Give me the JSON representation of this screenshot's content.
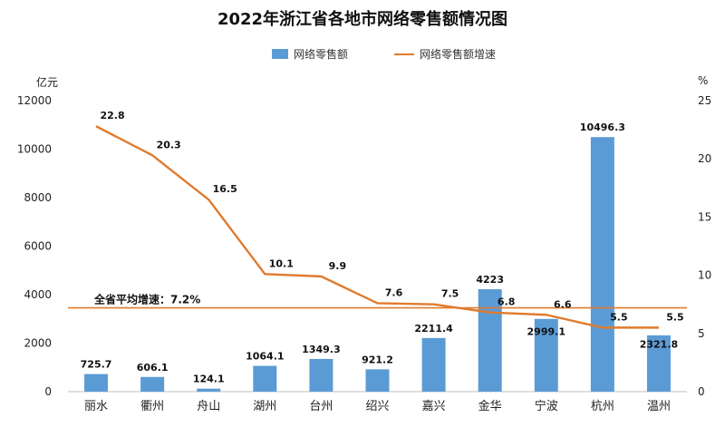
{
  "chart_data": {
    "type": "bar+line",
    "title": "2022年浙江省各地市网络零售额情况图",
    "categories": [
      "丽水",
      "衢州",
      "舟山",
      "湖州",
      "台州",
      "绍兴",
      "嘉兴",
      "金华",
      "宁波",
      "杭州",
      "温州"
    ],
    "series": [
      {
        "name": "网络零售额",
        "type": "bar",
        "axis": "left",
        "color": "#5b9bd5",
        "values": [
          725.7,
          606.1,
          124.1,
          1064.1,
          1349.3,
          921.2,
          2211.4,
          4223,
          2999.1,
          10496.3,
          2321.8
        ],
        "labels": [
          "725.7",
          "606.1",
          "124.1",
          "1064.1",
          "1349.3",
          "921.2",
          "2211.4",
          "4223",
          "2999.1",
          "10496.3",
          "2321.8"
        ]
      },
      {
        "name": "网络零售额增速",
        "type": "line",
        "axis": "right",
        "color": "#e07b2e",
        "values": [
          22.8,
          20.3,
          16.5,
          10.1,
          9.9,
          7.6,
          7.5,
          6.8,
          6.6,
          5.5,
          5.5
        ],
        "labels": [
          "22.8",
          "20.3",
          "16.5",
          "10.1",
          "9.9",
          "7.6",
          "7.5",
          "6.8",
          "6.6",
          "5.5",
          "5.5"
        ]
      }
    ],
    "y_left": {
      "unit": "亿元",
      "ylim": [
        0,
        12000
      ],
      "ticks": [
        "0",
        "2000",
        "4000",
        "6000",
        "8000",
        "10000",
        "12000"
      ]
    },
    "y_right": {
      "unit": "%",
      "ylim": [
        0,
        25
      ],
      "ticks": [
        "0",
        "5",
        "10",
        "15",
        "20",
        "25"
      ]
    },
    "reference_line": {
      "label": "全省平均增速：7.2%",
      "value": 7.2,
      "axis": "right",
      "color": "#e07b2e"
    },
    "grid": false,
    "legend_position": "top-center"
  }
}
